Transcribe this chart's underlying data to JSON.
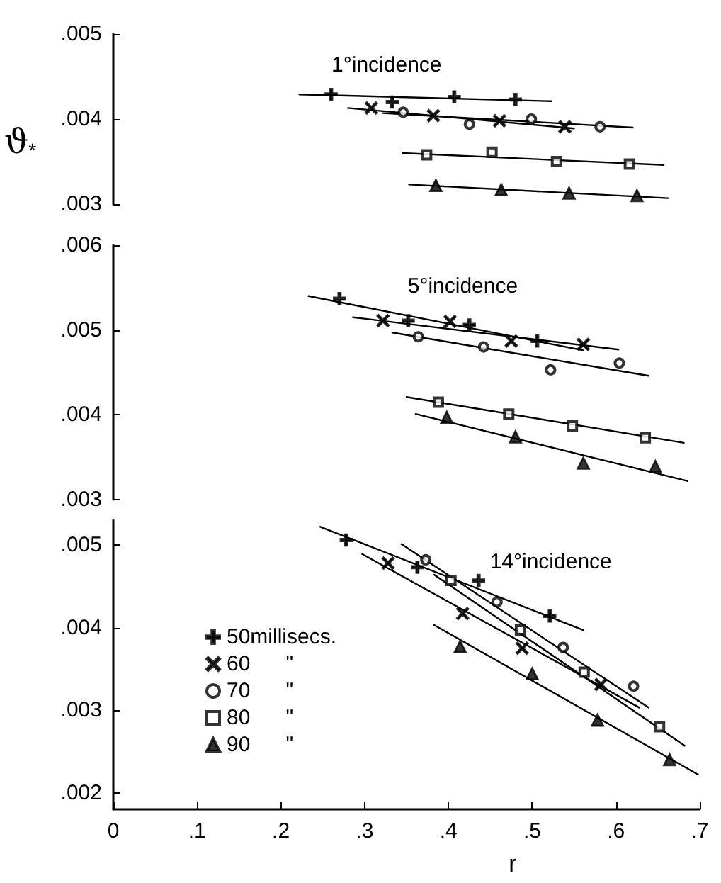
{
  "chart_data": [
    {
      "type": "scatter",
      "title": "1°incidence",
      "ylabel": "ϑ$_{*}$",
      "xlim": [
        0,
        0.7
      ],
      "ylim": [
        0.003,
        0.005
      ],
      "tick_labels": "y",
      "yticks": [
        {
          "value": 0.003,
          "label": ".003"
        },
        {
          "value": 0.004,
          "label": ".004"
        },
        {
          "value": 0.005,
          "label": ".005"
        }
      ],
      "series": [
        {
          "color": "#000000",
          "marker": "plus",
          "x": [
            0.26,
            0.333,
            0.407,
            0.48
          ],
          "values": [
            0.00429,
            0.0042,
            0.00426,
            0.00423
          ]
        },
        {
          "color": "#000000",
          "marker": "cross",
          "x": [
            0.308,
            0.382,
            0.461,
            0.539
          ],
          "values": [
            0.00413,
            0.00404,
            0.00398,
            0.00391
          ]
        },
        {
          "color": "#000000",
          "marker": "circle",
          "x": [
            0.346,
            0.425,
            0.499,
            0.581
          ],
          "values": [
            0.00408,
            0.00394,
            0.004,
            0.00391
          ]
        },
        {
          "color": "#000000",
          "marker": "square",
          "x": [
            0.374,
            0.452,
            0.529,
            0.616
          ],
          "values": [
            0.00358,
            0.00361,
            0.0035,
            0.00347
          ]
        },
        {
          "color": "#000000",
          "marker": "triangle",
          "x": [
            0.385,
            0.463,
            0.544,
            0.625
          ],
          "values": [
            0.00322,
            0.00317,
            0.00313,
            0.0031
          ]
        },
        {
          "type": "line",
          "color": "#000000",
          "marker": "none",
          "x": [
            0.222,
            0.523
          ],
          "values": [
            0.00429,
            0.00421
          ]
        },
        {
          "type": "line",
          "color": "#000000",
          "marker": "none",
          "x": [
            0.28,
            0.55
          ],
          "values": [
            0.00413,
            0.00389
          ]
        },
        {
          "type": "line",
          "color": "#000000",
          "marker": "none",
          "x": [
            0.322,
            0.62
          ],
          "values": [
            0.00407,
            0.0039
          ]
        },
        {
          "type": "line",
          "color": "#000000",
          "marker": "none",
          "x": [
            0.345,
            0.657
          ],
          "values": [
            0.0036,
            0.00346
          ]
        },
        {
          "type": "line",
          "color": "#000000",
          "marker": "none",
          "x": [
            0.353,
            0.662
          ],
          "values": [
            0.00323,
            0.00307
          ]
        }
      ]
    },
    {
      "type": "scatter",
      "title": "5°incidence",
      "xlim": [
        0,
        0.7
      ],
      "ylim": [
        0.003,
        0.006
      ],
      "tick_labels": "y",
      "yticks": [
        {
          "value": 0.003,
          "label": ".003"
        },
        {
          "value": 0.004,
          "label": ".004"
        },
        {
          "value": 0.005,
          "label": ".005"
        },
        {
          "value": 0.006,
          "label": ".006"
        }
      ],
      "series": [
        {
          "color": "#000000",
          "marker": "plus",
          "x": [
            0.27,
            0.352,
            0.425,
            0.506
          ],
          "values": [
            0.00537,
            0.00511,
            0.00506,
            0.00487
          ]
        },
        {
          "color": "#000000",
          "marker": "cross",
          "x": [
            0.322,
            0.402,
            0.475,
            0.561
          ],
          "values": [
            0.00511,
            0.0051,
            0.00487,
            0.00483
          ]
        },
        {
          "color": "#000000",
          "marker": "circle",
          "x": [
            0.364,
            0.442,
            0.522,
            0.604
          ],
          "values": [
            0.00492,
            0.0048,
            0.00453,
            0.00461
          ]
        },
        {
          "color": "#000000",
          "marker": "square",
          "x": [
            0.388,
            0.472,
            0.548,
            0.635
          ],
          "values": [
            0.00415,
            0.00401,
            0.00387,
            0.00373
          ]
        },
        {
          "color": "#000000",
          "marker": "triangle",
          "x": [
            0.398,
            0.48,
            0.561,
            0.647
          ],
          "values": [
            0.00397,
            0.00374,
            0.00343,
            0.00339
          ]
        },
        {
          "type": "line",
          "color": "#000000",
          "marker": "none",
          "x": [
            0.233,
            0.561
          ],
          "values": [
            0.0054,
            0.00476
          ]
        },
        {
          "type": "line",
          "color": "#000000",
          "marker": "none",
          "x": [
            0.286,
            0.603
          ],
          "values": [
            0.00515,
            0.00477
          ]
        },
        {
          "type": "line",
          "color": "#000000",
          "marker": "none",
          "x": [
            0.333,
            0.639
          ],
          "values": [
            0.00497,
            0.00446
          ]
        },
        {
          "type": "line",
          "color": "#000000",
          "marker": "none",
          "x": [
            0.35,
            0.681
          ],
          "values": [
            0.00421,
            0.00367
          ]
        },
        {
          "type": "line",
          "color": "#000000",
          "marker": "none",
          "x": [
            0.361,
            0.685
          ],
          "values": [
            0.00401,
            0.00322
          ]
        }
      ]
    },
    {
      "type": "scatter",
      "title": "14°incidence",
      "xlabel": "r",
      "xlim": [
        0,
        0.7
      ],
      "ylim": [
        0.0018,
        0.0053
      ],
      "legend": "left",
      "xticks": [
        {
          "value": 0,
          "label": "0"
        },
        {
          "value": 0.1,
          "label": ".1"
        },
        {
          "value": 0.2,
          "label": ".2"
        },
        {
          "value": 0.3,
          "label": ".3"
        },
        {
          "value": 0.4,
          "label": ".4"
        },
        {
          "value": 0.5,
          "label": ".5"
        },
        {
          "value": 0.6,
          "label": ".6"
        },
        {
          "value": 0.7,
          "label": ".7"
        }
      ],
      "yticks": [
        {
          "value": 0.002,
          "label": ".002"
        },
        {
          "value": 0.003,
          "label": ".003"
        },
        {
          "value": 0.004,
          "label": ".004"
        },
        {
          "value": 0.005,
          "label": ".005"
        }
      ],
      "series": [
        {
          "name": "50millisecs.",
          "color": "#000000",
          "marker": "plus",
          "x": [
            0.278,
            0.363,
            0.436,
            0.521
          ],
          "values": [
            0.00506,
            0.00473,
            0.00457,
            0.00414
          ]
        },
        {
          "name": "60      \"",
          "color": "#000000",
          "marker": "cross",
          "x": [
            0.328,
            0.417,
            0.488,
            0.582
          ],
          "values": [
            0.00478,
            0.00417,
            0.00375,
            0.00331
          ]
        },
        {
          "name": "70      \"",
          "color": "#000000",
          "marker": "circle",
          "x": [
            0.373,
            0.458,
            0.537,
            0.621
          ],
          "values": [
            0.00482,
            0.00431,
            0.00376,
            0.00329
          ]
        },
        {
          "name": "80      \"",
          "color": "#000000",
          "marker": "square",
          "x": [
            0.403,
            0.486,
            0.562,
            0.652
          ],
          "values": [
            0.00457,
            0.00397,
            0.00346,
            0.0028
          ]
        },
        {
          "name": "90      \"",
          "color": "#000000",
          "marker": "triangle",
          "x": [
            0.414,
            0.5,
            0.578,
            0.664
          ],
          "values": [
            0.00377,
            0.00344,
            0.00288,
            0.0024
          ]
        },
        {
          "type": "line",
          "color": "#000000",
          "marker": "none",
          "x": [
            0.247,
            0.561
          ],
          "values": [
            0.00522,
            0.00397
          ]
        },
        {
          "type": "line",
          "color": "#000000",
          "marker": "none",
          "x": [
            0.297,
            0.628
          ],
          "values": [
            0.00489,
            0.00303
          ]
        },
        {
          "type": "line",
          "color": "#000000",
          "marker": "none",
          "x": [
            0.344,
            0.639
          ],
          "values": [
            0.00501,
            0.00303
          ]
        },
        {
          "type": "line",
          "color": "#000000",
          "marker": "none",
          "x": [
            0.383,
            0.682
          ],
          "values": [
            0.00464,
            0.00257
          ]
        },
        {
          "type": "line",
          "color": "#000000",
          "marker": "none",
          "x": [
            0.383,
            0.698
          ],
          "values": [
            0.00403,
            0.00222
          ]
        }
      ]
    }
  ]
}
